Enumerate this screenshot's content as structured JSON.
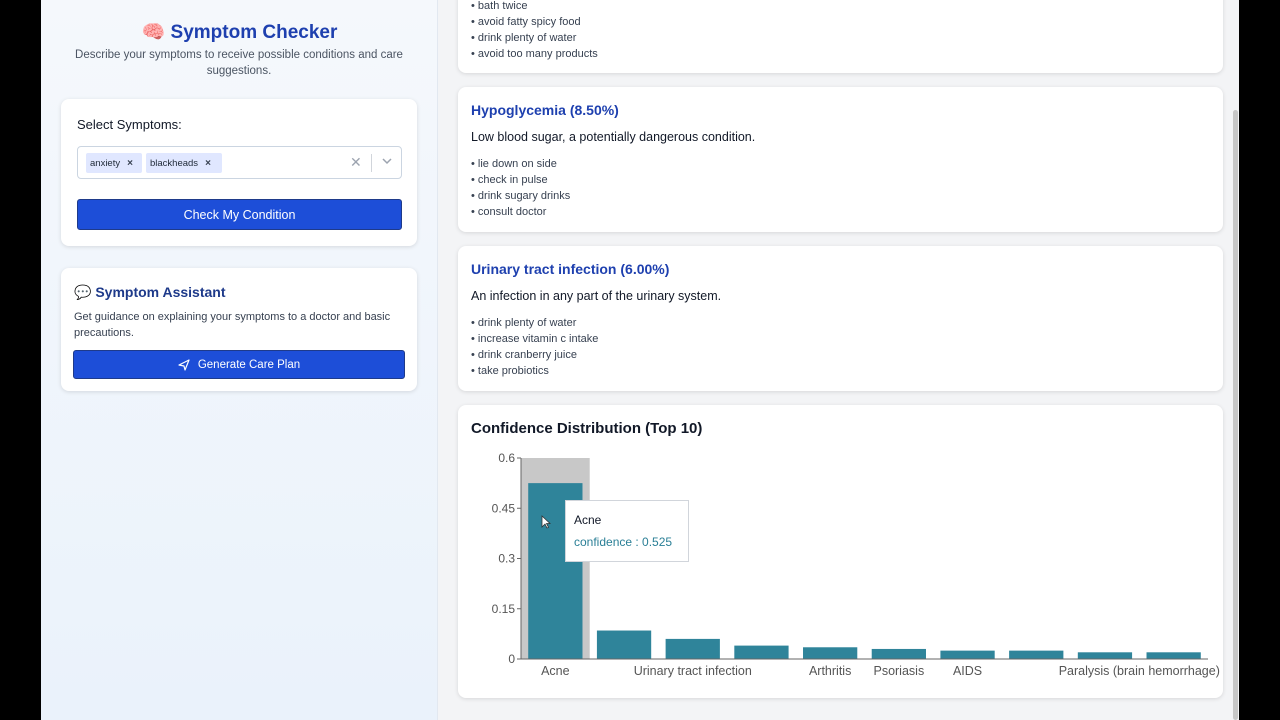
{
  "app": {
    "title_icon": "🧠",
    "title": "Symptom Checker",
    "subtitle": "Describe your symptoms to receive possible conditions and care suggestions."
  },
  "symptom_select": {
    "label": "Select Symptoms:",
    "selected": [
      "anxiety",
      "blackheads"
    ],
    "check_button": "Check My Condition"
  },
  "assistant": {
    "icon": "💬",
    "title": "Symptom Assistant",
    "description": "Get guidance on explaining your symptoms to a doctor and basic precautions.",
    "button": "Generate Care Plan"
  },
  "conditions": [
    {
      "title": "",
      "description": "",
      "tips": [
        "bath twice",
        "avoid fatty spicy food",
        "drink plenty of water",
        "avoid too many products"
      ]
    },
    {
      "title": "Hypoglycemia (8.50%)",
      "description": "Low blood sugar, a potentially dangerous condition.",
      "tips": [
        "lie down on side",
        "check in pulse",
        "drink sugary drinks",
        "consult doctor"
      ]
    },
    {
      "title": "Urinary tract infection (6.00%)",
      "description": "An infection in any part of the urinary system.",
      "tips": [
        "drink plenty of water",
        "increase vitamin c intake",
        "drink cranberry juice",
        "take probiotics"
      ]
    }
  ],
  "chart_section": {
    "title": "Confidence Distribution (Top 10)",
    "tooltip": {
      "name": "Acne",
      "label": "confidence : 0.525"
    }
  },
  "chart_data": {
    "type": "bar",
    "title": "Confidence Distribution (Top 10)",
    "x_tick_labels": [
      "Acne",
      "Urinary tract infection",
      "Arthritis",
      "Psoriasis",
      "AIDS",
      "Paralysis (brain hemorrhage)"
    ],
    "bars": [
      0.525,
      0.085,
      0.06,
      0.04,
      0.035,
      0.03,
      0.025,
      0.025,
      0.02,
      0.02
    ],
    "y_ticks": [
      "0",
      "0.15",
      "0.3",
      "0.45",
      "0.6"
    ],
    "ylim": [
      0,
      0.6
    ],
    "highlighted_index": 0,
    "bar_color": "#2f849a"
  }
}
